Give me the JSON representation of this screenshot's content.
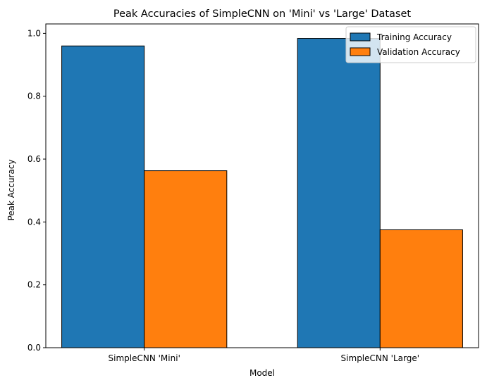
{
  "chart_data": {
    "type": "bar",
    "title": "Peak Accuracies of SimpleCNN on 'Mini' vs 'Large' Dataset",
    "xlabel": "Model",
    "ylabel": "Peak Accuracy",
    "categories": [
      "SimpleCNN 'Mini'",
      "SimpleCNN 'Large'"
    ],
    "series": [
      {
        "name": "Training Accuracy",
        "values": [
          0.96,
          0.984
        ],
        "color": "#1f77b4"
      },
      {
        "name": "Validation Accuracy",
        "values": [
          0.563,
          0.375
        ],
        "color": "#ff7f0e"
      }
    ],
    "ylim": [
      0,
      1.03
    ],
    "yticks": [
      0.0,
      0.2,
      0.4,
      0.6,
      0.8,
      1.0
    ],
    "ytick_labels": [
      "0.0",
      "0.2",
      "0.4",
      "0.6",
      "0.8",
      "1.0"
    ],
    "grid": false,
    "legend_position": "top-right",
    "bar_edge_color": "#000000"
  }
}
